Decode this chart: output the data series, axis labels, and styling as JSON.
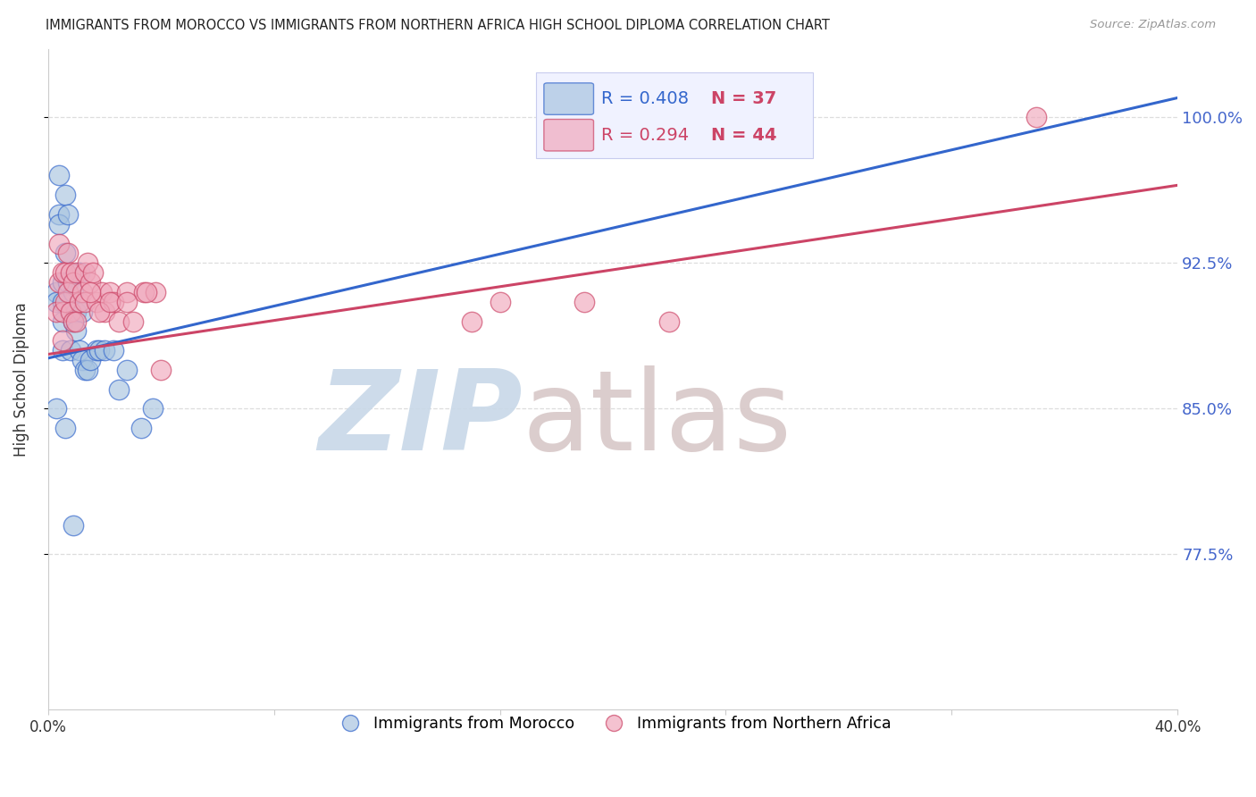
{
  "title": "IMMIGRANTS FROM MOROCCO VS IMMIGRANTS FROM NORTHERN AFRICA HIGH SCHOOL DIPLOMA CORRELATION CHART",
  "source": "Source: ZipAtlas.com",
  "ylabel": "High School Diploma",
  "ytick_labels": [
    "100.0%",
    "92.5%",
    "85.0%",
    "77.5%"
  ],
  "ytick_values": [
    1.0,
    0.925,
    0.85,
    0.775
  ],
  "xlim": [
    0.0,
    0.4
  ],
  "ylim": [
    0.695,
    1.035
  ],
  "blue_color": "#a8c4e0",
  "pink_color": "#f0a8bc",
  "blue_line_color": "#3366cc",
  "pink_line_color": "#cc4466",
  "axis_tick_color": "#4466cc",
  "grid_color": "#dddddd",
  "watermark_zip_color": "#c8d8e8",
  "watermark_atlas_color": "#d8c8c8",
  "legend_bg": "#f0f2ff",
  "legend_border": "#c8ccee",
  "blue_x": [
    0.003,
    0.003,
    0.004,
    0.004,
    0.004,
    0.005,
    0.005,
    0.005,
    0.005,
    0.006,
    0.006,
    0.007,
    0.007,
    0.008,
    0.008,
    0.009,
    0.009,
    0.01,
    0.01,
    0.011,
    0.011,
    0.012,
    0.012,
    0.013,
    0.014,
    0.015,
    0.017,
    0.018,
    0.02,
    0.023,
    0.025,
    0.028,
    0.033,
    0.037,
    0.003,
    0.006,
    0.009
  ],
  "blue_y": [
    0.91,
    0.905,
    0.97,
    0.95,
    0.945,
    0.915,
    0.905,
    0.895,
    0.88,
    0.96,
    0.93,
    0.95,
    0.915,
    0.9,
    0.88,
    0.91,
    0.895,
    0.9,
    0.89,
    0.92,
    0.88,
    0.9,
    0.875,
    0.87,
    0.87,
    0.875,
    0.88,
    0.88,
    0.88,
    0.88,
    0.86,
    0.87,
    0.84,
    0.85,
    0.85,
    0.84,
    0.79
  ],
  "pink_x": [
    0.003,
    0.004,
    0.004,
    0.005,
    0.005,
    0.005,
    0.006,
    0.006,
    0.007,
    0.007,
    0.008,
    0.008,
    0.009,
    0.009,
    0.01,
    0.01,
    0.011,
    0.012,
    0.013,
    0.013,
    0.014,
    0.015,
    0.016,
    0.017,
    0.019,
    0.02,
    0.022,
    0.023,
    0.025,
    0.028,
    0.03,
    0.034,
    0.038,
    0.04,
    0.015,
    0.018,
    0.022,
    0.028,
    0.035,
    0.16,
    0.19,
    0.22,
    0.15,
    0.35
  ],
  "pink_y": [
    0.9,
    0.935,
    0.915,
    0.92,
    0.9,
    0.885,
    0.92,
    0.905,
    0.93,
    0.91,
    0.92,
    0.9,
    0.915,
    0.895,
    0.92,
    0.895,
    0.905,
    0.91,
    0.92,
    0.905,
    0.925,
    0.915,
    0.92,
    0.905,
    0.91,
    0.9,
    0.91,
    0.905,
    0.895,
    0.91,
    0.895,
    0.91,
    0.91,
    0.87,
    0.91,
    0.9,
    0.905,
    0.905,
    0.91,
    0.905,
    0.905,
    0.895,
    0.895,
    1.0
  ],
  "blue_trend_x": [
    0.0,
    0.4
  ],
  "blue_trend_y": [
    0.876,
    1.01
  ],
  "pink_trend_x": [
    0.0,
    0.4
  ],
  "pink_trend_y": [
    0.878,
    0.965
  ]
}
